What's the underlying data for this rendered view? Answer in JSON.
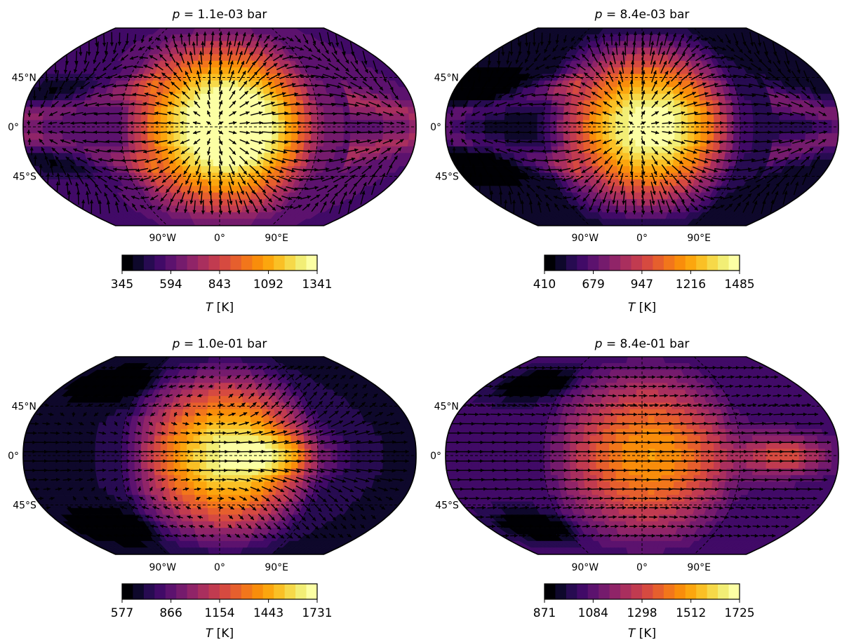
{
  "figure": {
    "description_units": "Temperature maps with wind vectors at four pressure levels",
    "colormap": [
      "#000004",
      "#0d0829",
      "#240b4e",
      "#3d0965",
      "#56106e",
      "#6e186e",
      "#87216b",
      "#a02a63",
      "#b73557",
      "#cc4248",
      "#de5238",
      "#ec6825",
      "#f57d15",
      "#fa9407",
      "#fcac10",
      "#fac42a",
      "#f5dc4d",
      "#f2ef77",
      "#fcffa4"
    ]
  },
  "chart_data": [
    {
      "type": "heatmap",
      "projection": "robinson",
      "title_var": "p",
      "title_value": " = 1.1e-03 bar",
      "lat_labels": [
        "45°N",
        "0°",
        "45°S"
      ],
      "lon_labels": [
        "90°W",
        "0°",
        "90°E"
      ],
      "colorbar": {
        "ticks": [
          "345",
          "594",
          "843",
          "1092",
          "1341"
        ],
        "min": 345,
        "max": 1341,
        "label_var": "T",
        "label_unit": " [K]"
      },
      "field": {
        "day_amp": 0.95,
        "night_base": 0.22,
        "chevron": 0.35,
        "band_width": 0.55,
        "limb_hot_lon": 100,
        "equator_jet": 0.0
      },
      "wind": "divergent"
    },
    {
      "type": "heatmap",
      "projection": "robinson",
      "title_var": "p",
      "title_value": " = 8.4e-03 bar",
      "lat_labels": [
        "45°N",
        "0°",
        "45°S"
      ],
      "lon_labels": [
        "90°W",
        "0°",
        "90°E"
      ],
      "colorbar": {
        "ticks": [
          "410",
          "679",
          "947",
          "1216",
          "1485"
        ],
        "min": 410,
        "max": 1485,
        "label_var": "T",
        "label_unit": " [K]"
      },
      "field": {
        "day_amp": 0.95,
        "night_base": 0.08,
        "chevron": 0.45,
        "band_width": 0.45,
        "limb_hot_lon": 100,
        "equator_jet": 0.0
      },
      "wind": "divergent"
    },
    {
      "type": "heatmap",
      "projection": "robinson",
      "title_var": "p",
      "title_value": " = 1.0e-01 bar",
      "lat_labels": [
        "45°N",
        "0°",
        "45°S"
      ],
      "lon_labels": [
        "90°W",
        "0°",
        "90°E"
      ],
      "colorbar": {
        "ticks": [
          "577",
          "866",
          "1154",
          "1443",
          "1731"
        ],
        "min": 577,
        "max": 1731,
        "label_var": "T",
        "label_unit": " [K]"
      },
      "field": {
        "day_amp": 0.85,
        "night_base": 0.1,
        "chevron": 0.0,
        "band_width": 0.5,
        "limb_hot_lon": 60,
        "equator_jet": 0.4
      },
      "wind": "mixed"
    },
    {
      "type": "heatmap",
      "projection": "robinson",
      "title_var": "p",
      "title_value": " = 8.4e-01 bar",
      "lat_labels": [
        "45°N",
        "0°",
        "45°S"
      ],
      "lon_labels": [
        "90°W",
        "0°",
        "90°E"
      ],
      "colorbar": {
        "ticks": [
          "871",
          "1084",
          "1298",
          "1512",
          "1725"
        ],
        "min": 871,
        "max": 1725,
        "label_var": "T",
        "label_unit": " [K]"
      },
      "field": {
        "day_amp": 0.55,
        "night_base": 0.18,
        "chevron": 0.0,
        "band_width": 0.6,
        "limb_hot_lon": 130,
        "equator_jet": 0.6
      },
      "wind": "zonal"
    }
  ]
}
